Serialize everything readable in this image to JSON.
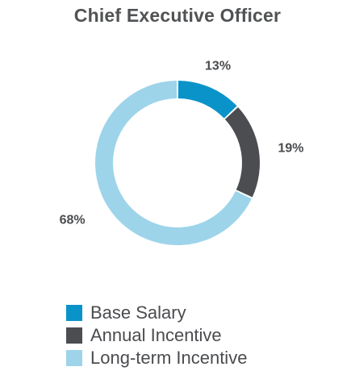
{
  "chart_data": {
    "type": "pie",
    "title": "Chief Executive Officer",
    "slices": [
      {
        "label": "Base Salary",
        "value": 13,
        "value_label": "13%",
        "color": "#0a93c9"
      },
      {
        "label": "Annual Incentive",
        "value": 19,
        "value_label": "19%",
        "color": "#4b4d51"
      },
      {
        "label": "Long-term Incentive",
        "value": 68,
        "value_label": "68%",
        "color": "#9dd4ea"
      }
    ],
    "donut": true,
    "legend_position": "bottom-left"
  }
}
